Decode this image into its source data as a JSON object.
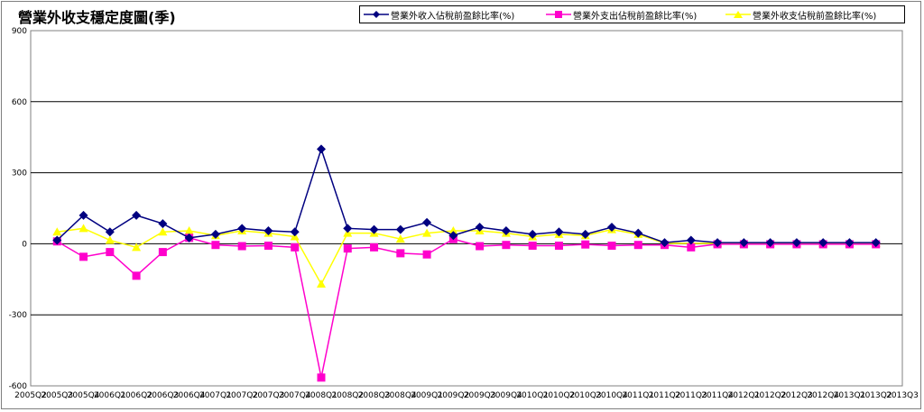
{
  "chart_data": {
    "type": "line",
    "title": "營業外收支穩定度圖(季)",
    "x_labels": [
      "2005Q2",
      "2005Q3",
      "2005Q4",
      "2006Q1",
      "2006Q2",
      "2006Q3",
      "2006Q4",
      "2007Q1",
      "2007Q2",
      "2007Q3",
      "2007Q4",
      "2008Q1",
      "2008Q2",
      "2008Q3",
      "2008Q4",
      "2009Q1",
      "2009Q2",
      "2009Q3",
      "2009Q4",
      "2010Q1",
      "2010Q2",
      "2010Q3",
      "2010Q4",
      "2011Q1",
      "2011Q2",
      "2011Q3",
      "2011Q4",
      "2012Q1",
      "2012Q2",
      "2012Q3",
      "2012Q4",
      "2013Q1",
      "2013Q2",
      "2013Q3"
    ],
    "x": [
      "2005Q3",
      "2005Q4",
      "2006Q1",
      "2006Q2",
      "2006Q3",
      "2006Q4",
      "2007Q1",
      "2007Q2",
      "2007Q3",
      "2007Q4",
      "2008Q1",
      "2008Q2",
      "2008Q3",
      "2008Q4",
      "2009Q1",
      "2009Q2",
      "2009Q3",
      "2009Q4",
      "2010Q1",
      "2010Q2",
      "2010Q3",
      "2010Q4",
      "2011Q1",
      "2011Q2",
      "2011Q3",
      "2011Q4",
      "2012Q1",
      "2012Q2",
      "2012Q3",
      "2012Q4",
      "2013Q1",
      "2013Q2"
    ],
    "series": [
      {
        "name": "營業外收入佔稅前盈餘比率(%)",
        "color": "#000080",
        "marker": "diamond",
        "values": [
          15,
          120,
          50,
          120,
          85,
          25,
          40,
          65,
          55,
          50,
          400,
          65,
          60,
          60,
          90,
          35,
          70,
          55,
          40,
          50,
          40,
          70,
          45,
          5,
          15,
          5,
          5,
          5,
          5,
          5,
          5,
          5
        ]
      },
      {
        "name": "營業外支出佔稅前盈餘比率(%)",
        "color": "#FF00CC",
        "marker": "square",
        "values": [
          10,
          -55,
          -35,
          -135,
          -35,
          25,
          -5,
          -10,
          -8,
          -15,
          -565,
          -20,
          -15,
          -40,
          -45,
          20,
          -10,
          -5,
          -8,
          -8,
          -3,
          -8,
          -5,
          -5,
          -15,
          -2,
          -2,
          -2,
          -2,
          -2,
          -2,
          -2
        ]
      },
      {
        "name": "營業外收支佔稅前盈餘比率(%)",
        "color": "#FFFF00",
        "marker": "triangle",
        "values": [
          50,
          65,
          15,
          -15,
          50,
          55,
          35,
          55,
          45,
          30,
          -170,
          45,
          45,
          20,
          45,
          55,
          55,
          45,
          30,
          40,
          35,
          60,
          40,
          2,
          2,
          2,
          2,
          2,
          2,
          2,
          2,
          2
        ]
      }
    ],
    "yticks": [
      900,
      600,
      300,
      0,
      -300,
      -600
    ],
    "ylim": [
      -600,
      900
    ],
    "grid": "horizontal",
    "legend_position": "top-right"
  }
}
